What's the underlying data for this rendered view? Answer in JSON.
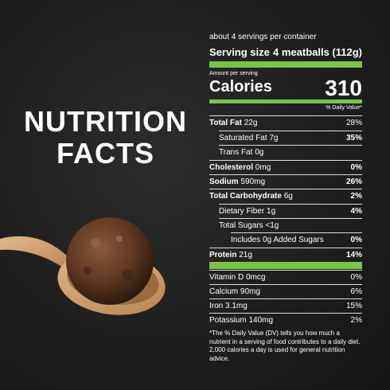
{
  "title": [
    "NUTRITION",
    "FACTS"
  ],
  "label": {
    "servings": "about 4 servings per container",
    "serving_size": {
      "label": "Serving size",
      "value": "4 meatballs (112g)"
    },
    "amount_per_serving": "Amount per serving",
    "calories": {
      "label": "Calories",
      "value": "310"
    },
    "dv_header": "% Daily Value*",
    "rows": [
      {
        "name": "Total Fat",
        "amount": "22g",
        "dv": "28%"
      },
      {
        "name": "Saturated Fat",
        "amount": "7g",
        "dv": "35%"
      },
      {
        "name": "Trans Fat",
        "amount": "0g"
      },
      {
        "name": "Cholesterol",
        "amount": "0mg",
        "dv": "0%"
      },
      {
        "name": "Sodium",
        "amount": "590mg",
        "dv": "26%"
      },
      {
        "name": "Total Carbohydrate",
        "amount": "6g",
        "dv": "2%"
      },
      {
        "name": "Dietary Fiber",
        "amount": "1g",
        "dv": "4%"
      },
      {
        "name": "Total Sugars",
        "amount": "<1g"
      },
      {
        "name": "Includes 0g Added Sugars",
        "dv": "0%"
      },
      {
        "name": "Protein",
        "amount": "21g",
        "dv": "14%"
      }
    ],
    "vitamins": [
      {
        "name": "Vitamin D",
        "amount": "0mcg",
        "dv": "0%"
      },
      {
        "name": "Calcium",
        "amount": "90mg",
        "dv": "6%"
      },
      {
        "name": "Iron",
        "amount": "3.1mg",
        "dv": "15%"
      },
      {
        "name": "Potassium",
        "amount": "140mg",
        "dv": "2%"
      }
    ],
    "footnote": "*The % Daily Value (DV) tells you how much a nutrient in a serving of food contributes to a daily diet. 2,000 calories a day is used for general nutrition advice."
  }
}
